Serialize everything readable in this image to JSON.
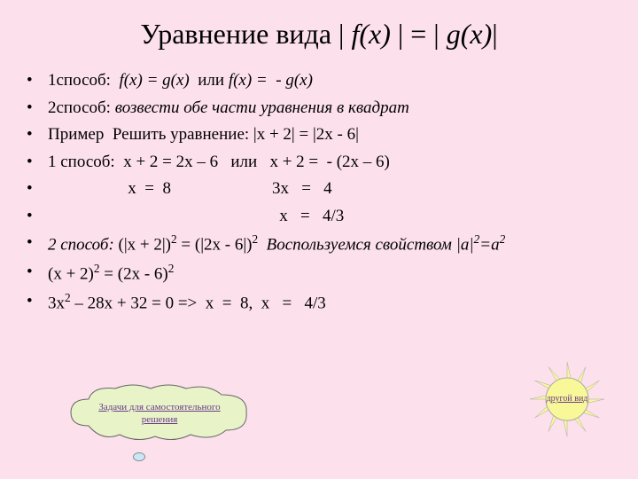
{
  "colors": {
    "background": "#fce0ec",
    "text": "#000000",
    "link": "#6a3a8a",
    "cloud_fill": "#e8f4c8",
    "sun_fill": "#f8f898",
    "sun_ray_fill": "#f8f898"
  },
  "title": {
    "prefix": "Уравнение вида | ",
    "fx": "f(x)",
    "middle": " |  = | ",
    "gx": "g(x)",
    "suffix": "|"
  },
  "lines": [
    {
      "parts": [
        {
          "t": "1способ:  ",
          "i": false
        },
        {
          "t": "f(x) = g(x)  ",
          "i": true
        },
        {
          "t": "или",
          "i": false
        },
        {
          "t": " f(x) =  - g(x)",
          "i": true
        }
      ]
    },
    {
      "parts": [
        {
          "t": "2способ: ",
          "i": false
        },
        {
          "t": "возвести обе части уравнения в квадрат",
          "i": true
        }
      ]
    },
    {
      "parts": [
        {
          "t": "Пример  Решить уравнение: |x + 2| = |2x - 6|",
          "i": false
        }
      ]
    },
    {
      "parts": [
        {
          "t": "1 способ:  x + 2 = 2x – 6   или   x + 2 =  - (2x – 6)",
          "i": false
        }
      ]
    },
    {
      "parts": [
        {
          "t": "                   x  =  8                        3x   =   4",
          "i": false
        }
      ]
    },
    {
      "parts": [
        {
          "t": "                                                       x   =   4/3",
          "i": false
        }
      ]
    },
    {
      "parts": [
        {
          "t": "2 способ: ",
          "i": true
        },
        {
          "t": "(|x + 2|)",
          "i": false
        },
        {
          "t": "2",
          "sup": true
        },
        {
          "t": " = (|2x - 6|)",
          "i": false
        },
        {
          "t": "2",
          "sup": true
        },
        {
          "t": "  Воспользуемся свойством |a|",
          "i": true
        },
        {
          "t": "2",
          "sup": true,
          "i": true
        },
        {
          "t": "=a",
          "i": true
        },
        {
          "t": "2",
          "sup": true,
          "i": true
        }
      ]
    },
    {
      "parts": [
        {
          "t": "(x + 2)",
          "i": false
        },
        {
          "t": "2",
          "sup": true
        },
        {
          "t": " = (2x - 6)",
          "i": false
        },
        {
          "t": "2",
          "sup": true
        }
      ]
    },
    {
      "parts": [
        {
          "t": "3x",
          "i": false
        },
        {
          "t": "2",
          "sup": true
        },
        {
          "t": " – 28x + 32 = 0 =>  x  =  8,  x   =   4/3",
          "i": false
        }
      ]
    }
  ],
  "cloud_link": {
    "line1": "Задачи для самостоятельного",
    "line2": "решения"
  },
  "sun_link": "другой вид"
}
